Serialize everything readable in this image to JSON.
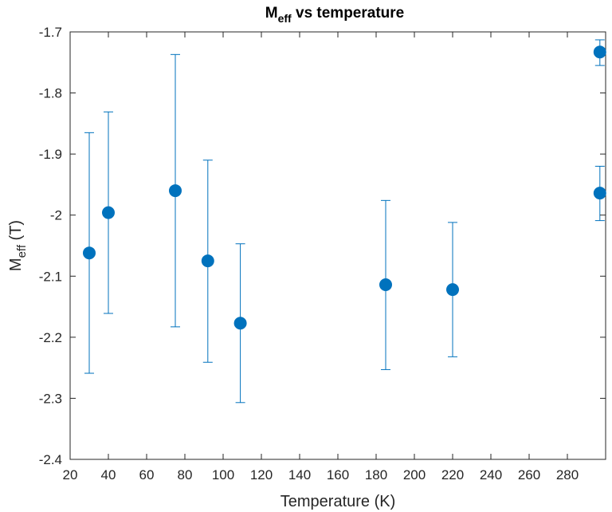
{
  "chart_data": {
    "type": "scatter",
    "title": {
      "main": "M",
      "sub": "eff",
      "rest": " vs temperature"
    },
    "xlabel": "Temperature (K)",
    "ylabel": {
      "main": "M",
      "sub": "eff",
      "rest": " (T)"
    },
    "xlim": [
      20,
      300
    ],
    "ylim": [
      -2.4,
      -1.7
    ],
    "xticks": [
      20,
      40,
      60,
      80,
      100,
      120,
      140,
      160,
      180,
      200,
      220,
      240,
      260,
      280
    ],
    "xtick_labels": [
      "20",
      "40",
      "60",
      "80",
      "100",
      "120",
      "140",
      "160",
      "180",
      "200",
      "220",
      "240",
      "260",
      "280"
    ],
    "yticks": [
      -2.4,
      -2.3,
      -2.2,
      -2.1,
      -2.0,
      -1.9,
      -1.8,
      -1.7
    ],
    "ytick_labels": [
      "-2.4",
      "-2.3",
      "-2.2",
      "-2.1",
      "-2",
      "-1.9",
      "-1.8",
      "-1.7"
    ],
    "grid": false,
    "color": "#0072BD",
    "points": [
      {
        "x": 30,
        "y": -2.062,
        "lower": -2.259,
        "upper": -1.865
      },
      {
        "x": 40,
        "y": -1.996,
        "lower": -2.161,
        "upper": -1.831
      },
      {
        "x": 75,
        "y": -1.96,
        "lower": -2.183,
        "upper": -1.737
      },
      {
        "x": 92,
        "y": -2.075,
        "lower": -2.241,
        "upper": -1.91
      },
      {
        "x": 109,
        "y": -2.177,
        "lower": -2.307,
        "upper": -2.047
      },
      {
        "x": 185,
        "y": -2.114,
        "lower": -2.253,
        "upper": -1.976
      },
      {
        "x": 220,
        "y": -2.122,
        "lower": -2.232,
        "upper": -2.012
      },
      {
        "x": 297,
        "y": -1.733,
        "lower": -1.755,
        "upper": -1.713
      },
      {
        "x": 297,
        "y": -1.964,
        "lower": -2.009,
        "upper": -1.92
      }
    ]
  }
}
